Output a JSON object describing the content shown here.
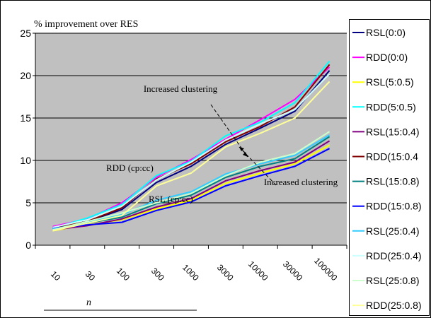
{
  "chart_data": {
    "type": "line",
    "title": "% improvement over RES",
    "x_label": "n",
    "annotations": [
      "Increased clustering",
      "Increased clustering",
      "RDD (cp:cc)",
      "RSL (cp:cc)"
    ],
    "categories": [
      "10",
      "30",
      "100",
      "300",
      "1000",
      "3000",
      "10000",
      "30000",
      "100000"
    ],
    "ylim": [
      0,
      25
    ],
    "yticks": [
      0,
      5,
      10,
      15,
      20,
      25
    ],
    "grid": true,
    "legend": "right",
    "series": [
      {
        "name": "RSL(0:0)",
        "color": "#000080",
        "values": [
          2.1,
          2.8,
          4.2,
          7.4,
          9.3,
          11.9,
          13.8,
          15.8,
          20.6
        ]
      },
      {
        "name": "RDD(0:0)",
        "color": "#ff00ff",
        "values": [
          2.2,
          3.1,
          5.0,
          8.0,
          10.1,
          12.5,
          14.8,
          17.2,
          21.0
        ]
      },
      {
        "name": "RSL(5:0.5)",
        "color": "#ffff00",
        "values": [
          1.7,
          2.4,
          3.0,
          4.3,
          5.3,
          7.3,
          8.5,
          9.6,
          11.8
        ]
      },
      {
        "name": "RDD(5:0.5)",
        "color": "#00ffff",
        "values": [
          2.0,
          3.2,
          4.8,
          8.2,
          9.9,
          12.9,
          14.5,
          16.8,
          21.7
        ]
      },
      {
        "name": "RSL(15:0.4)",
        "color": "#800080",
        "values": [
          1.8,
          2.3,
          3.1,
          4.5,
          5.5,
          7.6,
          8.8,
          9.8,
          12.3
        ]
      },
      {
        "name": "RDD(15:0.4",
        "color": "#800000",
        "values": [
          2.0,
          2.8,
          4.4,
          7.8,
          9.6,
          12.2,
          14.0,
          16.3,
          21.3
        ]
      },
      {
        "name": "RSL(15:0.8)",
        "color": "#008080",
        "values": [
          1.9,
          2.6,
          3.3,
          4.9,
          5.9,
          8.0,
          9.3,
          10.2,
          12.8
        ]
      },
      {
        "name": "RDD(15:0.8)",
        "color": "#0000ff",
        "values": [
          2.0,
          2.4,
          2.7,
          4.1,
          5.1,
          7.0,
          8.2,
          9.3,
          11.4
        ]
      },
      {
        "name": "RSL(25:0.4)",
        "color": "#33ccff",
        "values": [
          1.9,
          2.7,
          3.6,
          5.3,
          6.3,
          8.4,
          9.6,
          10.6,
          13.0
        ]
      },
      {
        "name": "RDD(25:0.4)",
        "color": "#ccffff",
        "values": [
          2.1,
          3.0,
          4.6,
          7.7,
          9.8,
          12.4,
          14.3,
          16.0,
          20.2
        ]
      },
      {
        "name": "RSL(25:0.8)",
        "color": "#ccffcc",
        "values": [
          1.8,
          2.8,
          3.8,
          5.0,
          6.1,
          8.2,
          9.8,
          10.8,
          13.4
        ]
      },
      {
        "name": "RDD(25:0.8)",
        "color": "#ffff99",
        "values": [
          1.7,
          2.6,
          3.5,
          7.0,
          8.5,
          11.6,
          13.2,
          15.0,
          19.3
        ]
      }
    ]
  }
}
